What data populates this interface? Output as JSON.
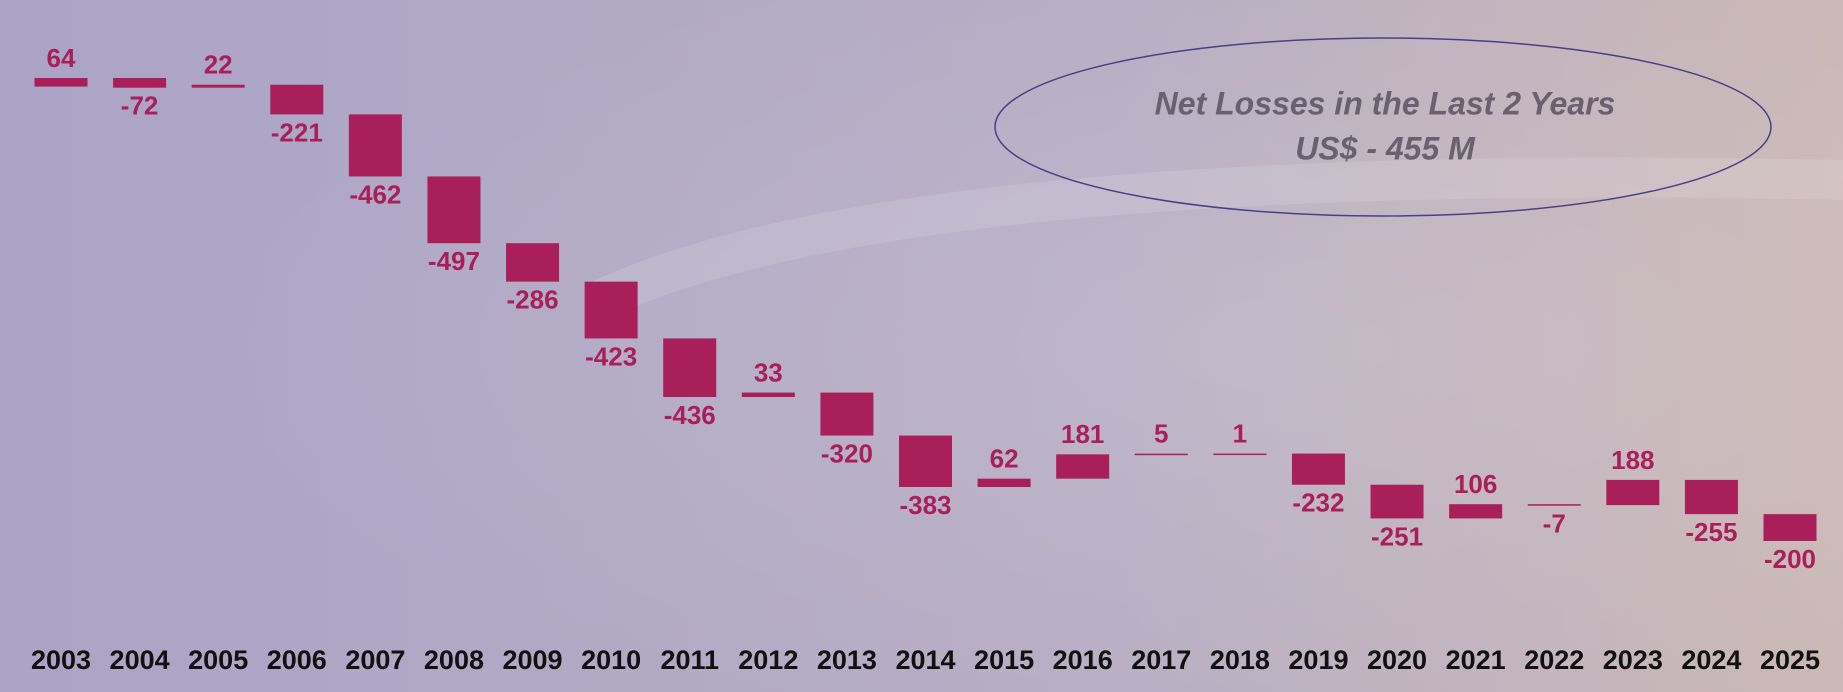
{
  "chart_data": {
    "type": "waterfall",
    "annotations": [
      "Net Losses in the Last 2 Years",
      "US$ - 455 M"
    ],
    "categories": [
      "2003",
      "2004",
      "2005",
      "2006",
      "2007",
      "2008",
      "2009",
      "2010",
      "2011",
      "2012",
      "2013",
      "2014",
      "2015",
      "2016",
      "2017",
      "2018",
      "2019",
      "2020",
      "2021",
      "2022",
      "2023",
      "2024",
      "2025"
    ],
    "values": [
      64,
      -72,
      22,
      -221,
      -462,
      -497,
      -286,
      -423,
      -436,
      33,
      -320,
      -383,
      62,
      181,
      5,
      1,
      -232,
      -251,
      106,
      -7,
      188,
      -255,
      -200
    ],
    "color": "#a81f5a"
  }
}
